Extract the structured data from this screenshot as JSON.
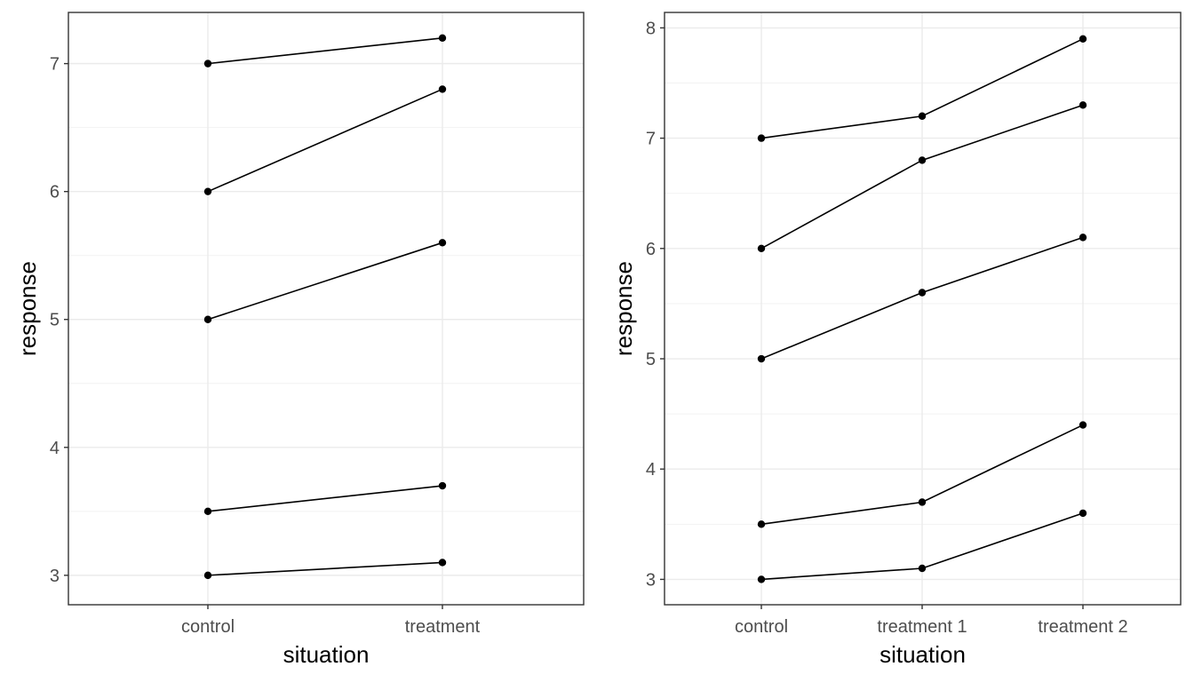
{
  "chart_data": [
    {
      "type": "line",
      "xlabel": "situation",
      "ylabel": "response",
      "categories": [
        "control",
        "treatment"
      ],
      "ylim": [
        2.77,
        7.4
      ],
      "yticks": [
        3,
        4,
        5,
        6,
        7
      ],
      "grid": true,
      "series": [
        {
          "values": [
            7.0,
            7.2
          ]
        },
        {
          "values": [
            6.0,
            6.8
          ]
        },
        {
          "values": [
            5.0,
            5.6
          ]
        },
        {
          "values": [
            3.5,
            3.7
          ]
        },
        {
          "values": [
            3.0,
            3.1
          ]
        }
      ]
    },
    {
      "type": "line",
      "xlabel": "situation",
      "ylabel": "response",
      "categories": [
        "control",
        "treatment 1",
        "treatment 2"
      ],
      "ylim": [
        2.77,
        8.14
      ],
      "yticks": [
        3,
        4,
        5,
        6,
        7,
        8
      ],
      "grid": true,
      "series": [
        {
          "values": [
            7.0,
            7.2,
            7.9
          ]
        },
        {
          "values": [
            6.0,
            6.8,
            7.3
          ]
        },
        {
          "values": [
            5.0,
            5.6,
            6.1
          ]
        },
        {
          "values": [
            3.5,
            3.7,
            4.4
          ]
        },
        {
          "values": [
            3.0,
            3.1,
            3.6
          ]
        }
      ]
    }
  ]
}
